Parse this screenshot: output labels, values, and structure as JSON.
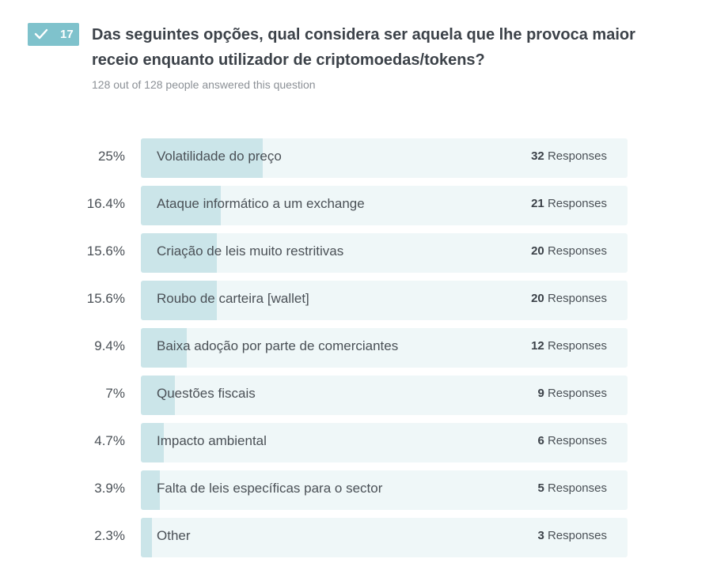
{
  "question": {
    "number": "17",
    "title": "Das seguintes opções, qual considera ser aquela que lhe provoca maior receio enquanto utilizador de criptomoedas/tokens?",
    "answered": "128 out of 128 people answered this question",
    "responses_label": "Responses"
  },
  "colors": {
    "badge": "#7fc2cc",
    "bar_fill": "#cbe5e9",
    "bar_track": "#eff7f8"
  },
  "chart_data": {
    "type": "bar",
    "orientation": "horizontal",
    "categories": [
      "Volatilidade do preço",
      "Ataque informático a um exchange",
      "Criação de leis muito restritivas",
      "Roubo de carteira [wallet]",
      "Baixa adoção por parte de comerciantes",
      "Questões fiscais",
      "Impacto ambiental",
      "Falta de leis específicas para o sector",
      "Other"
    ],
    "percent_labels": [
      "25%",
      "16.4%",
      "15.6%",
      "15.6%",
      "9.4%",
      "7%",
      "4.7%",
      "3.9%",
      "2.3%"
    ],
    "values": [
      32,
      21,
      20,
      20,
      12,
      9,
      6,
      5,
      3
    ],
    "ylim": [
      0,
      128
    ]
  }
}
